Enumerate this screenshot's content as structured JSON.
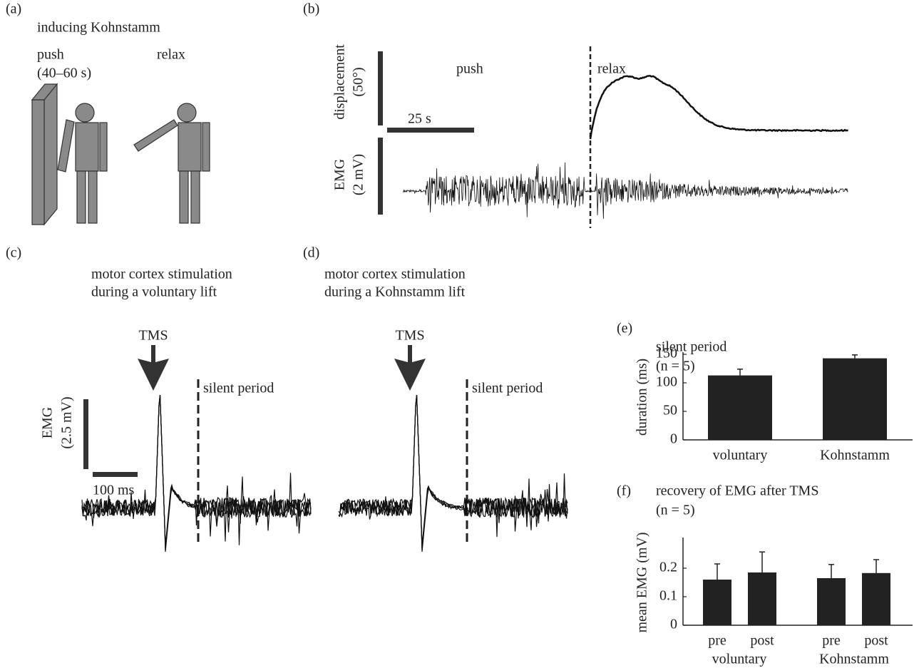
{
  "panels": {
    "a": {
      "label": "(a)",
      "title": "inducing Kohnstamm",
      "push": "push",
      "push_time": "(40–60 s)",
      "relax": "relax"
    },
    "b": {
      "label": "(b)",
      "displacement": "displacement",
      "displacement_scale": "(50°)",
      "time_scale": "25 s",
      "push": "push",
      "relax": "relax",
      "emg": "EMG",
      "emg_scale": "(2 mV)"
    },
    "c": {
      "label": "(c)",
      "title": [
        "motor cortex stimulation",
        "during a voluntary lift"
      ],
      "tms": "TMS",
      "silent_period": "silent period",
      "emg": "EMG",
      "emg_scale": "(2.5 mV)",
      "time_scale": "100 ms"
    },
    "d": {
      "label": "(d)",
      "title": [
        "motor cortex stimulation",
        "during a Kohnstamm lift"
      ],
      "tms": "TMS",
      "silent_period": "silent period"
    }
  },
  "chart_data": [
    {
      "type": "bar",
      "panel_label": "(e)",
      "title": "silent period",
      "subtitle": "(n = 5)",
      "y_label": "duration (ms)",
      "categories": [
        "voluntary",
        "Kohnstamm"
      ],
      "values": [
        113,
        143
      ],
      "errors": [
        11,
        6
      ],
      "color": "#222222",
      "ylim": [
        0,
        150
      ],
      "yticks": [
        0,
        50,
        100,
        150
      ]
    },
    {
      "type": "bar",
      "panel_label": "(f)",
      "title": "recovery of EMG after TMS",
      "subtitle": "(n = 5)",
      "y_label": "mean EMG (mV)",
      "categories": [
        "pre",
        "post",
        "pre",
        "post"
      ],
      "groups": [
        "voluntary",
        "Kohnstamm"
      ],
      "values": [
        0.16,
        0.185,
        0.165,
        0.183
      ],
      "errors": [
        0.055,
        0.072,
        0.048,
        0.047
      ],
      "color": "#222222",
      "ylim": [
        0,
        0.3
      ],
      "yticks": [
        0,
        0.1,
        0.2
      ]
    }
  ]
}
